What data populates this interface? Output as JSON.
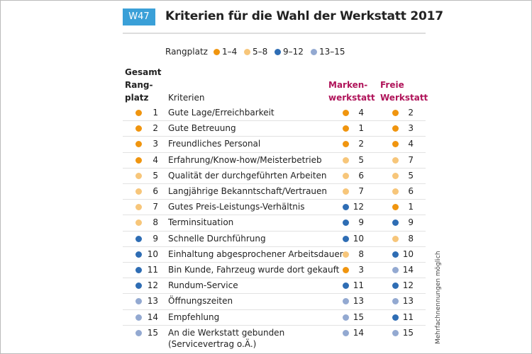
{
  "header": {
    "badge": "W47",
    "title": "Kriterien für die Wahl der Werkstatt 2017"
  },
  "legend": {
    "label": "Rangplatz",
    "items": [
      {
        "label": "1–4",
        "color": "#f0950f"
      },
      {
        "label": "5–8",
        "color": "#f7c67a"
      },
      {
        "label": "9–12",
        "color": "#2e6db4"
      },
      {
        "label": "13–15",
        "color": "#93a9d1"
      }
    ]
  },
  "table": {
    "columns": [
      "Gesamt\nRang-\nplatz",
      "Kriterien",
      "Marken-\nwerkstatt",
      "Freie\nWerkstatt"
    ],
    "rows": [
      [
        1,
        "Gute Lage/Erreichbarkeit",
        4,
        2
      ],
      [
        2,
        "Gute Betreuung",
        1,
        3
      ],
      [
        3,
        "Freundliches Personal",
        2,
        4
      ],
      [
        4,
        "Erfahrung/Know-how/Meisterbetrieb",
        5,
        7
      ],
      [
        5,
        "Qualität der durchgeführten Arbeiten",
        6,
        5
      ],
      [
        6,
        "Langjährige Bekanntschaft/Vertrauen",
        7,
        6
      ],
      [
        7,
        "Gutes Preis-Leistungs-Verhältnis",
        12,
        1
      ],
      [
        8,
        "Terminsituation",
        9,
        9
      ],
      [
        9,
        "Schnelle Durchführung",
        10,
        8
      ],
      [
        10,
        "Einhaltung abgesprochener Arbeitsdauer",
        8,
        10
      ],
      [
        11,
        "Bin Kunde, Fahrzeug wurde dort gekauft",
        3,
        14
      ],
      [
        12,
        "Rundum-Service",
        11,
        12
      ],
      [
        13,
        "Öffnungszeiten",
        13,
        13
      ],
      [
        14,
        "Empfehlung",
        15,
        11
      ],
      [
        15,
        "An die Werkstatt gebunden\n(Servicevertrag o.Ä.)",
        14,
        15
      ]
    ]
  },
  "note": "Mehrfachnennungen möglich"
}
